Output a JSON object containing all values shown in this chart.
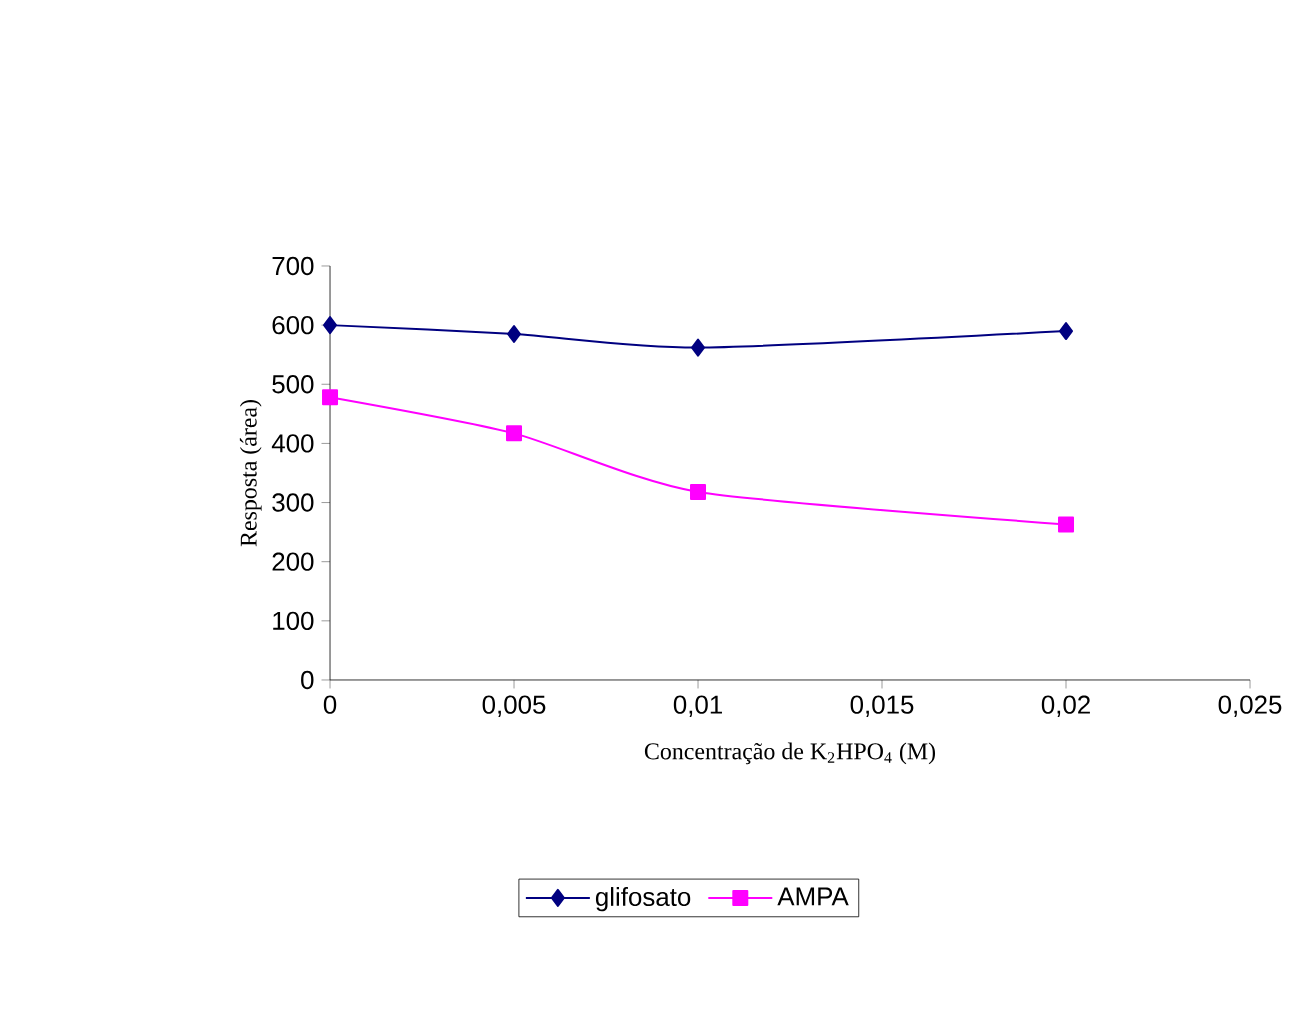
{
  "chart_data": {
    "type": "line",
    "xlabel": "Concentração de K$_{2}$HPO$_{4}$ (M)",
    "ylabel": "Resposta (área)",
    "xlim": [
      0,
      0.025
    ],
    "xticks": [
      0,
      {
        "value": 0.005,
        "label": "0,005"
      },
      {
        "value": 0.01,
        "label": "0,01"
      },
      {
        "value": 0.015,
        "label": "0,015"
      },
      {
        "value": 0.02,
        "label": "0,02"
      },
      {
        "value": 0.025,
        "label": "0,025"
      }
    ],
    "ylim": [
      0,
      700
    ],
    "yticks": [
      0,
      100,
      200,
      300,
      400,
      500,
      600,
      700
    ],
    "x": [
      0,
      0.005,
      0.01,
      0.02
    ],
    "series": [
      {
        "name": "glifosato",
        "color": "#000080",
        "marker": "diamond",
        "values": [
          600,
          585,
          562,
          590
        ]
      },
      {
        "name": "AMPA",
        "color": "#ff00ff",
        "marker": "square",
        "values": [
          478,
          417,
          318,
          263
        ]
      }
    ],
    "legend": "bottom",
    "grid": false,
    "line_style": "solid"
  }
}
